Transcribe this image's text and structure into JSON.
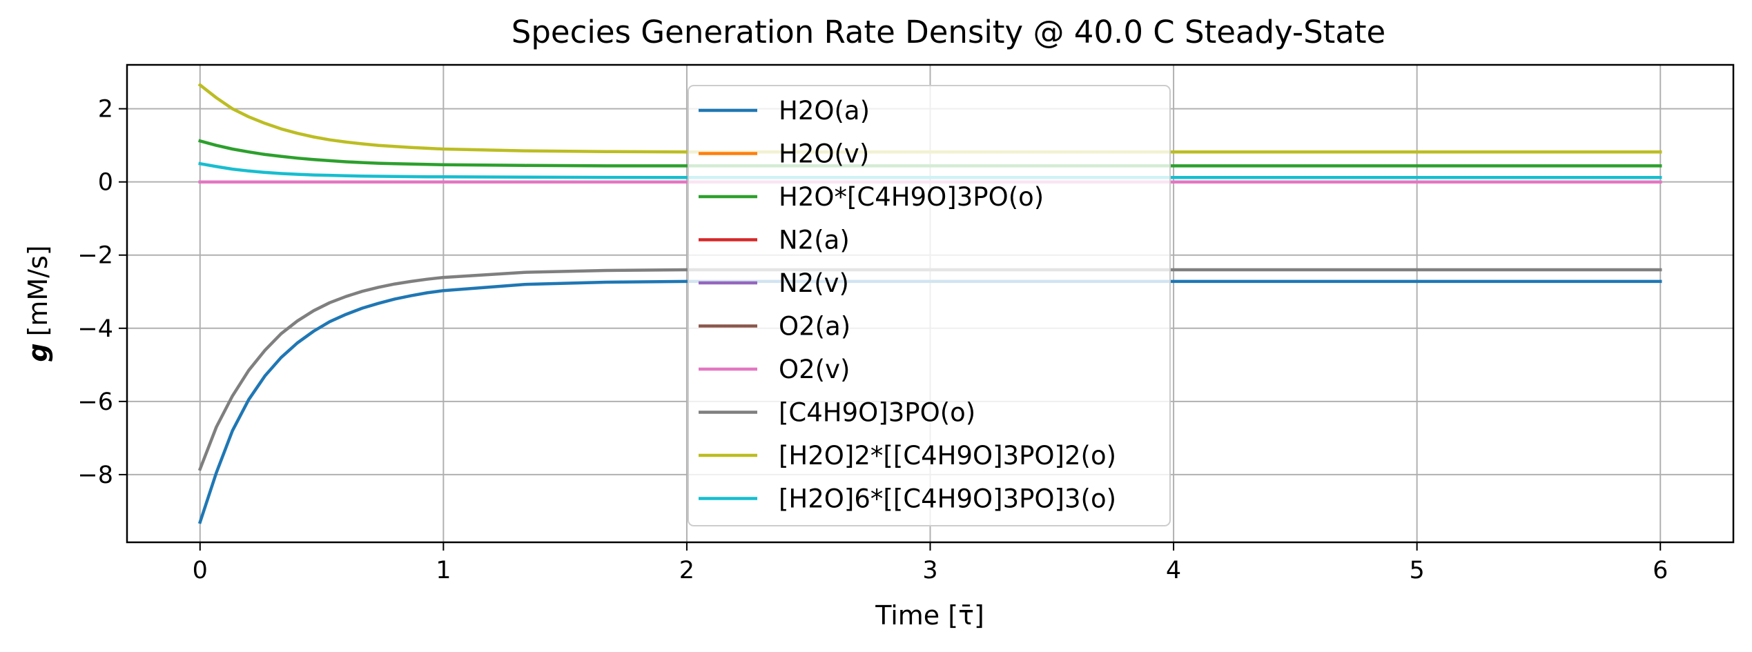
{
  "chart_data": {
    "type": "line",
    "title": "Species Generation Rate Density @ 40.0 C Steady-State",
    "xlabel": "Time [τ̄]",
    "ylabel_symbol": "g",
    "ylabel_unit": "[mM/s]",
    "xlim": [
      -0.3,
      6.3
    ],
    "ylim": [
      -9.85,
      3.2
    ],
    "xticks": [
      0,
      1,
      2,
      3,
      4,
      5,
      6
    ],
    "yticks": [
      2,
      0,
      -2,
      -4,
      -6,
      -8
    ],
    "ytick_labels": [
      "2",
      "0",
      "−2",
      "−4",
      "−6",
      "−8"
    ],
    "grid": true,
    "legend_position": "upper center",
    "x": [
      0,
      0.067,
      0.133,
      0.2,
      0.267,
      0.333,
      0.4,
      0.467,
      0.533,
      0.6,
      0.667,
      0.733,
      0.8,
      0.867,
      0.933,
      1.0,
      1.333,
      1.667,
      2.0,
      3.0,
      4.0,
      5.0,
      6.0
    ],
    "series": [
      {
        "name": "H2O(a)",
        "color": "#1f77b4",
        "values": [
          -9.3,
          -7.95,
          -6.8,
          -5.95,
          -5.3,
          -4.8,
          -4.4,
          -4.08,
          -3.82,
          -3.62,
          -3.45,
          -3.32,
          -3.2,
          -3.11,
          -3.03,
          -2.97,
          -2.8,
          -2.74,
          -2.72,
          -2.72,
          -2.72,
          -2.72,
          -2.72
        ]
      },
      {
        "name": "H2O(v)",
        "color": "#ff7f0e",
        "values": [
          0,
          0,
          0,
          0,
          0,
          0,
          0,
          0,
          0,
          0,
          0,
          0,
          0,
          0,
          0,
          0,
          0,
          0,
          0,
          0,
          0,
          0,
          0
        ]
      },
      {
        "name": "H2O*[C4H9O]3PO(o)",
        "color": "#2ca02c",
        "values": [
          1.12,
          1.0,
          0.9,
          0.82,
          0.75,
          0.7,
          0.65,
          0.61,
          0.58,
          0.55,
          0.53,
          0.51,
          0.5,
          0.49,
          0.48,
          0.47,
          0.45,
          0.44,
          0.44,
          0.44,
          0.44,
          0.44,
          0.44
        ]
      },
      {
        "name": "N2(a)",
        "color": "#d62728",
        "values": [
          0,
          0,
          0,
          0,
          0,
          0,
          0,
          0,
          0,
          0,
          0,
          0,
          0,
          0,
          0,
          0,
          0,
          0,
          0,
          0,
          0,
          0,
          0
        ]
      },
      {
        "name": "N2(v)",
        "color": "#9467bd",
        "values": [
          0,
          0,
          0,
          0,
          0,
          0,
          0,
          0,
          0,
          0,
          0,
          0,
          0,
          0,
          0,
          0,
          0,
          0,
          0,
          0,
          0,
          0,
          0
        ]
      },
      {
        "name": "O2(a)",
        "color": "#8c564b",
        "values": [
          0,
          0,
          0,
          0,
          0,
          0,
          0,
          0,
          0,
          0,
          0,
          0,
          0,
          0,
          0,
          0,
          0,
          0,
          0,
          0,
          0,
          0,
          0
        ]
      },
      {
        "name": "O2(v)",
        "color": "#e377c2",
        "values": [
          0,
          0,
          0,
          0,
          0,
          0,
          0,
          0,
          0,
          0,
          0,
          0,
          0,
          0,
          0,
          0,
          0,
          0,
          0,
          0,
          0,
          0,
          0
        ]
      },
      {
        "name": "[C4H9O]3PO(o)",
        "color": "#7f7f7f",
        "values": [
          -7.85,
          -6.7,
          -5.85,
          -5.15,
          -4.6,
          -4.15,
          -3.8,
          -3.52,
          -3.3,
          -3.13,
          -2.99,
          -2.88,
          -2.79,
          -2.72,
          -2.66,
          -2.61,
          -2.47,
          -2.42,
          -2.4,
          -2.4,
          -2.4,
          -2.4,
          -2.4
        ]
      },
      {
        "name": "[H2O]2*[[C4H9O]3PO]2(o)",
        "color": "#bcbd22",
        "values": [
          2.65,
          2.3,
          2.0,
          1.78,
          1.6,
          1.45,
          1.33,
          1.23,
          1.15,
          1.09,
          1.04,
          1.0,
          0.97,
          0.94,
          0.92,
          0.9,
          0.85,
          0.83,
          0.82,
          0.82,
          0.82,
          0.82,
          0.82
        ]
      },
      {
        "name": "[H2O]6*[[C4H9O]3PO]3(o)",
        "color": "#17becf",
        "values": [
          0.5,
          0.42,
          0.35,
          0.3,
          0.26,
          0.23,
          0.21,
          0.19,
          0.18,
          0.17,
          0.16,
          0.155,
          0.15,
          0.145,
          0.142,
          0.14,
          0.13,
          0.125,
          0.12,
          0.12,
          0.12,
          0.12,
          0.12
        ]
      }
    ]
  }
}
